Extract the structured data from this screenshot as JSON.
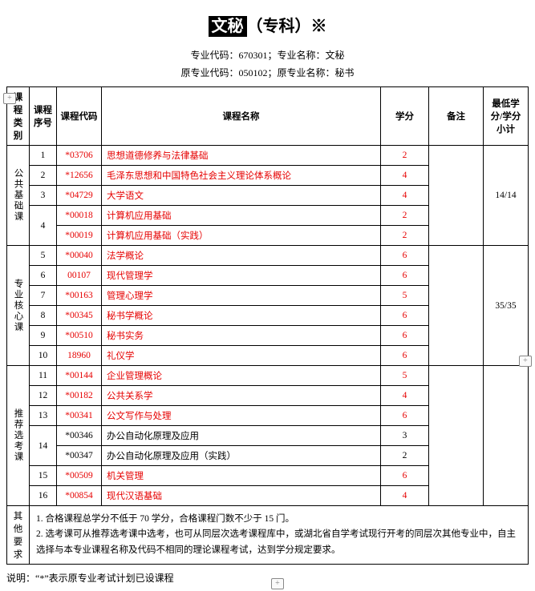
{
  "title_prefix": "文秘",
  "title_suffix": "（专科）※",
  "sub_line1": "专业代码：670301；专业名称：文秘",
  "sub_line2": "原专业代码：050102；原专业名称：秘书",
  "headers": {
    "cat": "课程类别",
    "idx": "课程序号",
    "code": "课程代码",
    "name": "课程名称",
    "credit": "学分",
    "note": "备注",
    "sub": "最低学分/学分小计"
  },
  "cats": {
    "c1": "公共基础课",
    "c2": "专业核心课",
    "c3": "推荐选考课"
  },
  "subtotals": {
    "s1": "14/14",
    "s2": "35/35",
    "s3": ""
  },
  "rows_c1": [
    {
      "idx": "1",
      "code": "*03706",
      "name": "思想道德修养与法律基础",
      "credit": "2",
      "red": true
    },
    {
      "idx": "2",
      "code": "*12656",
      "name": "毛泽东思想和中国特色社会主义理论体系概论",
      "credit": "4",
      "red": true
    },
    {
      "idx": "3",
      "code": "*04729",
      "name": "大学语文",
      "credit": "4",
      "red": true
    },
    {
      "idx": "4",
      "code": "*00018",
      "name": "计算机应用基础",
      "credit": "2",
      "red": true,
      "merge4": true
    },
    {
      "idx": "",
      "code": "*00019",
      "name": "计算机应用基础（实践）",
      "credit": "2",
      "red": true
    }
  ],
  "rows_c2": [
    {
      "idx": "5",
      "code": "*00040",
      "name": "法学概论",
      "credit": "6",
      "red": true
    },
    {
      "idx": "6",
      "code": "00107",
      "name": "现代管理学",
      "credit": "6",
      "red": true
    },
    {
      "idx": "7",
      "code": "*00163",
      "name": "管理心理学",
      "credit": "5",
      "red": true
    },
    {
      "idx": "8",
      "code": "*00345",
      "name": "秘书学概论",
      "credit": "6",
      "red": true
    },
    {
      "idx": "9",
      "code": "*00510",
      "name": "秘书实务",
      "credit": "6",
      "red": true
    },
    {
      "idx": "10",
      "code": "18960",
      "name": "礼仪学",
      "credit": "6",
      "red": true
    }
  ],
  "rows_c3": [
    {
      "idx": "11",
      "code": "*00144",
      "name": "企业管理概论",
      "credit": "5",
      "red": true
    },
    {
      "idx": "12",
      "code": "*00182",
      "name": "公共关系学",
      "credit": "4",
      "red": true
    },
    {
      "idx": "13",
      "code": "*00341",
      "name": "公文写作与处理",
      "credit": "6",
      "red": true
    },
    {
      "idx": "14",
      "code": "*00346",
      "name": "办公自动化原理及应用",
      "credit": "3",
      "red": false,
      "merge14": true
    },
    {
      "idx": "",
      "code": "*00347",
      "name": "办公自动化原理及应用（实践）",
      "credit": "2",
      "red": false
    },
    {
      "idx": "15",
      "code": "*00509",
      "name": "机关管理",
      "credit": "6",
      "red": true
    },
    {
      "idx": "16",
      "code": "*00854",
      "name": "现代汉语基础",
      "credit": "4",
      "red": true
    }
  ],
  "other_req_label": "其他要求",
  "other_req_text": "1. 合格课程总学分不低于 70 学分，合格课程门数不少于 15 门。\n2. 选考课可从推荐选考课中选考，也可从同层次选考课程库中，或湖北省自学考试现行开考的同层次其他专业中，自主选择与本专业课程名称及代码不相同的理论课程考试，达到学分规定要求。",
  "footnote": "说明：“*”表示原专业考试计划已设课程",
  "colors": {
    "red": "#e60000"
  },
  "plus_icon": "+"
}
